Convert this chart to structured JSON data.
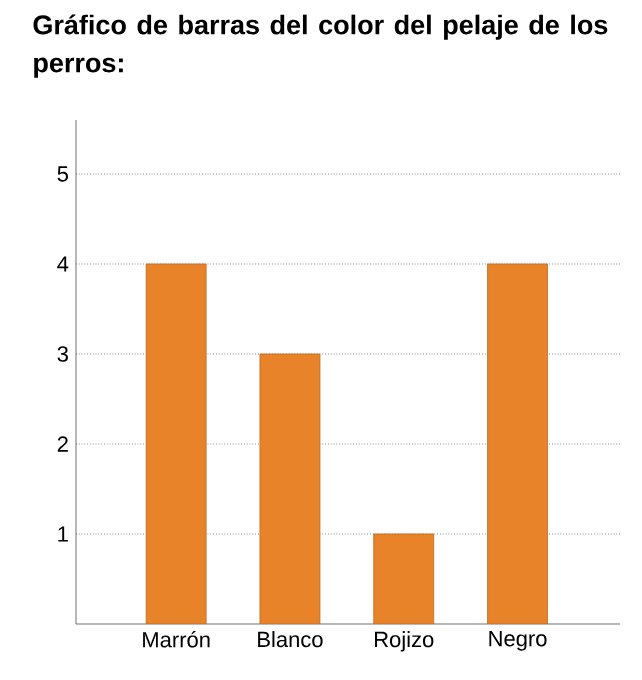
{
  "chart_data": {
    "type": "bar",
    "title": "Gráfico de barras del color del pelaje de los perros:",
    "categories": [
      "Marrón",
      "Blanco",
      "Rojizo",
      "Negro"
    ],
    "values": [
      4,
      3,
      1,
      4
    ],
    "color": "#e8832a",
    "ylim": [
      0,
      5.6
    ],
    "yticks": [
      1,
      2,
      3,
      4,
      5
    ],
    "grid": "y"
  }
}
